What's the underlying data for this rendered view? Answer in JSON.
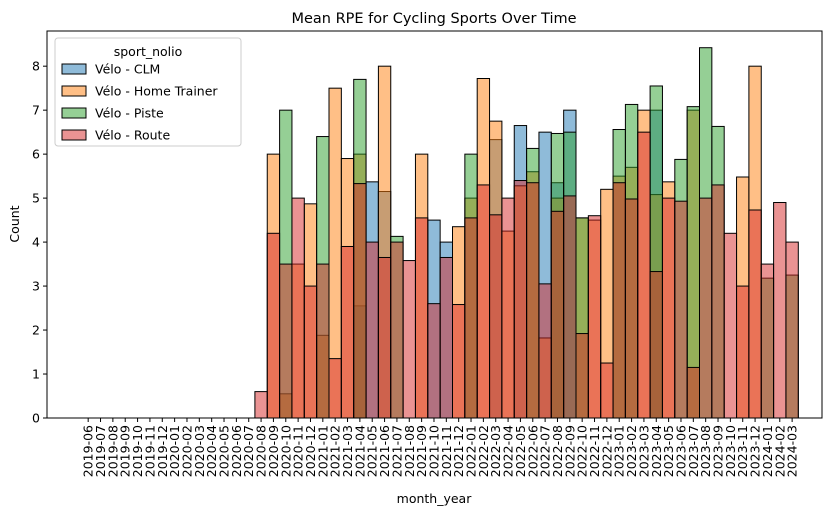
{
  "chart_data": {
    "type": "bar",
    "title": "Mean RPE for Cycling Sports Over Time",
    "xlabel": "month_year",
    "ylabel": "Count",
    "ylim": [
      0,
      8.8
    ],
    "yticks": [
      0,
      1,
      2,
      3,
      4,
      5,
      6,
      7,
      8
    ],
    "grid": false,
    "legend": {
      "title": "sport_nolio",
      "placement": "top-left"
    },
    "categories": [
      "2019-06",
      "2019-07",
      "2019-08",
      "2019-09",
      "2019-10",
      "2019-11",
      "2019-12",
      "2020-01",
      "2020-02",
      "2020-03",
      "2020-04",
      "2020-05",
      "2020-06",
      "2020-07",
      "2020-08",
      "2020-09",
      "2020-10",
      "2020-11",
      "2020-12",
      "2021-01",
      "2021-02",
      "2021-03",
      "2021-04",
      "2021-05",
      "2021-06",
      "2021-07",
      "2021-08",
      "2021-09",
      "2021-10",
      "2021-11",
      "2021-12",
      "2022-01",
      "2022-02",
      "2022-03",
      "2022-04",
      "2022-05",
      "2022-06",
      "2022-07",
      "2022-08",
      "2022-09",
      "2022-10",
      "2022-11",
      "2022-12",
      "2023-01",
      "2023-02",
      "2023-03",
      "2023-04",
      "2023-05",
      "2023-06",
      "2023-07",
      "2023-08",
      "2023-09",
      "2023-10",
      "2023-11",
      "2023-12",
      "2024-01",
      "2024-02",
      "2024-03"
    ],
    "series": [
      {
        "name": "Vélo - CLM",
        "color": "#1f77b4",
        "values": [
          0,
          0,
          0,
          0,
          0,
          0,
          0,
          0,
          0,
          0,
          0,
          0,
          0,
          0,
          0,
          0,
          0,
          0,
          0,
          0,
          0,
          0,
          2.55,
          5.37,
          5.15,
          0,
          0,
          0,
          4.5,
          4.0,
          0,
          0,
          0,
          6.33,
          0,
          6.65,
          0,
          6.5,
          5.35,
          7.0,
          0,
          0,
          0,
          0,
          0,
          0,
          7.0,
          0,
          0,
          0,
          0,
          0,
          0,
          0,
          0,
          0,
          0,
          0
        ]
      },
      {
        "name": "Vélo - Home Trainer",
        "color": "#ff7f0e",
        "values": [
          0,
          0,
          0,
          0,
          0,
          0,
          0,
          0,
          0,
          0,
          0,
          0,
          0,
          0,
          0,
          6.0,
          0.55,
          3.5,
          4.87,
          1.88,
          7.5,
          5.9,
          6.0,
          0,
          8.0,
          0,
          0,
          6.0,
          0,
          0,
          4.35,
          5.0,
          7.72,
          6.75,
          4.25,
          5.28,
          5.6,
          1.82,
          5.0,
          0,
          4.55,
          4.5,
          5.2,
          5.5,
          5.7,
          7.0,
          5.08,
          5.37,
          0,
          7.0,
          0,
          0,
          0,
          5.48,
          8.0,
          0,
          0,
          0
        ]
      },
      {
        "name": "Vélo - Piste",
        "color": "#2ca02c",
        "values": [
          0,
          0,
          0,
          0,
          0,
          0,
          0,
          0,
          0,
          0,
          0,
          0,
          0,
          0,
          0,
          0,
          7.0,
          0,
          0,
          6.4,
          0,
          0,
          7.7,
          0,
          0,
          4.13,
          0,
          0,
          0,
          0,
          0,
          6.0,
          0,
          0,
          0,
          0,
          6.13,
          0,
          6.47,
          6.5,
          4.55,
          0,
          0,
          6.56,
          7.13,
          0,
          7.55,
          0,
          5.88,
          7.08,
          8.42,
          6.63,
          0,
          0,
          0,
          3.18,
          0,
          3.25
        ]
      },
      {
        "name": "Vélo - Route",
        "color": "#d62728",
        "values": [
          0,
          0,
          0,
          0,
          0,
          0,
          0,
          0,
          0,
          0,
          0,
          0,
          0,
          0,
          0.6,
          4.2,
          3.5,
          5.0,
          3.0,
          3.5,
          1.35,
          3.9,
          5.33,
          4.0,
          3.65,
          4.0,
          3.58,
          4.55,
          2.6,
          3.65,
          2.58,
          4.55,
          5.3,
          4.62,
          5.0,
          5.4,
          5.35,
          3.05,
          4.7,
          5.05,
          1.92,
          4.6,
          1.25,
          5.35,
          4.98,
          6.5,
          3.33,
          5.0,
          4.93,
          1.15,
          5.0,
          5.3,
          4.2,
          3.0,
          4.73,
          3.5,
          4.9,
          4.0
        ]
      }
    ]
  }
}
